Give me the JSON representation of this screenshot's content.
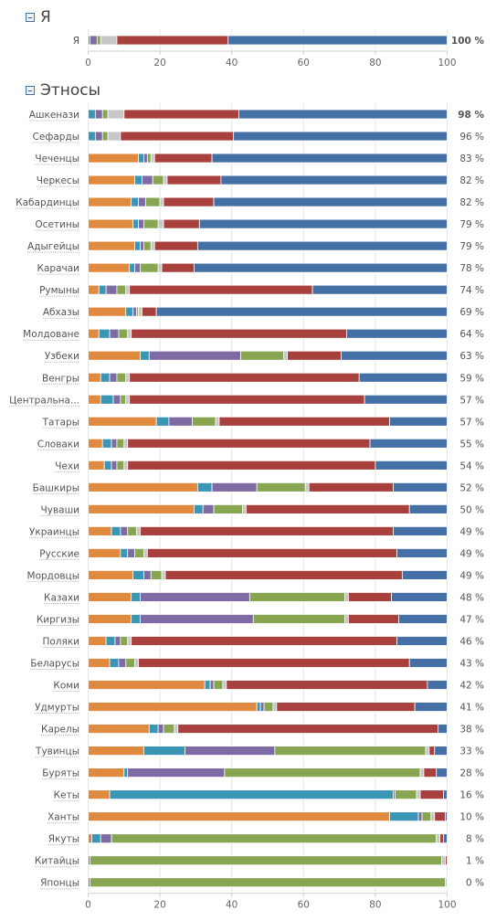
{
  "sections": [
    {
      "title": "Я",
      "chart_data": {
        "type": "bar",
        "orientation": "horizontal",
        "stacked": true,
        "xlim": [
          0,
          100
        ],
        "xticks": [
          0,
          20,
          40,
          60,
          80,
          100
        ],
        "categories": [
          "Я"
        ],
        "percent_labels": [
          "100 %"
        ],
        "segments": [
          [
            0,
            0.5,
            2,
            1,
            4.5,
            31,
            61
          ]
        ]
      }
    },
    {
      "title": "Этносы",
      "chart_data": {
        "type": "bar",
        "orientation": "horizontal",
        "stacked": true,
        "xlim": [
          0,
          100
        ],
        "xticks": [
          0,
          20,
          40,
          60,
          80,
          100
        ],
        "categories": [
          "Ашкенази",
          "Сефарды",
          "Чеченцы",
          "Черкесы",
          "Кабардинцы",
          "Осетины",
          "Адыгейцы",
          "Карачаи",
          "Румыны",
          "Абхазы",
          "Молдоване",
          "Узбеки",
          "Венгры",
          "Центральна...",
          "Татары",
          "Словаки",
          "Чехи",
          "Башкиры",
          "Чуваши",
          "Украинцы",
          "Русские",
          "Мордовцы",
          "Казахи",
          "Киргизы",
          "Поляки",
          "Беларусы",
          "Коми",
          "Удмурты",
          "Карелы",
          "Тувинцы",
          "Буряты",
          "Кеты",
          "Ханты",
          "Якуты",
          "Китайцы",
          "Японцы"
        ],
        "percent_labels": [
          "98 %",
          "96 %",
          "83 %",
          "82 %",
          "82 %",
          "79 %",
          "79 %",
          "78 %",
          "74 %",
          "69 %",
          "64 %",
          "63 %",
          "59 %",
          "57 %",
          "57 %",
          "55 %",
          "54 %",
          "52 %",
          "50 %",
          "49 %",
          "49 %",
          "49 %",
          "48 %",
          "47 %",
          "46 %",
          "43 %",
          "42 %",
          "41 %",
          "38 %",
          "33 %",
          "28 %",
          "16 %",
          "10 %",
          "8 %",
          "1 %",
          "0 %"
        ],
        "segments": [
          [
            0,
            2,
            2,
            1.5,
            4.5,
            32,
            58
          ],
          [
            0,
            2,
            2,
            1.5,
            3.5,
            31.5,
            59.5
          ],
          [
            14,
            1.5,
            1,
            1,
            1,
            16,
            65.5
          ],
          [
            13,
            2,
            3,
            3,
            1,
            15,
            63
          ],
          [
            12,
            2,
            2,
            4,
            1,
            14,
            65
          ],
          [
            12.5,
            1.5,
            1.5,
            4,
            1.5,
            10,
            69
          ],
          [
            13,
            1.5,
            1,
            2,
            1,
            12,
            69.5
          ],
          [
            11.5,
            1.5,
            1.5,
            5,
            1,
            9,
            70.5
          ],
          [
            3,
            2,
            3,
            2.5,
            1,
            51,
            37.5
          ],
          [
            10.5,
            2,
            1,
            0.5,
            1,
            4,
            81
          ],
          [
            3,
            3,
            2.5,
            2.5,
            1,
            60,
            28
          ],
          [
            14.5,
            2.5,
            25.5,
            12,
            1,
            15,
            29.5
          ],
          [
            3.5,
            2.5,
            2,
            2.5,
            1,
            64,
            24.5
          ],
          [
            3.5,
            3.5,
            2,
            1.5,
            1,
            65.5,
            23
          ],
          [
            19,
            3.5,
            6.5,
            6.5,
            1,
            47.5,
            16
          ],
          [
            4,
            2.5,
            1.5,
            2,
            1,
            67.5,
            21.5
          ],
          [
            4.5,
            2,
            1.5,
            2,
            1,
            69,
            20
          ],
          [
            30.5,
            4,
            12.5,
            13.5,
            1,
            23.5,
            15
          ],
          [
            29.5,
            2.5,
            3,
            8,
            1,
            45.5,
            10.5
          ],
          [
            6.5,
            2.5,
            2,
            2.5,
            1,
            70.5,
            15
          ],
          [
            9,
            2,
            2,
            2.5,
            1,
            69.5,
            14
          ],
          [
            12.5,
            3,
            2,
            3,
            1,
            66,
            12.5
          ],
          [
            12,
            2.5,
            30.5,
            26.5,
            1,
            12,
            15.5
          ],
          [
            12,
            2.5,
            31.5,
            25.5,
            1,
            14,
            13.5
          ],
          [
            5,
            2.5,
            1.5,
            2,
            1,
            74,
            14
          ],
          [
            6,
            2.5,
            2,
            2.5,
            1,
            75.5,
            10.5
          ],
          [
            32.5,
            1.5,
            1,
            2.5,
            1,
            56,
            5.5
          ],
          [
            47,
            1,
            1,
            2.5,
            1,
            38.5,
            9
          ],
          [
            17,
            2.5,
            1.5,
            3,
            1,
            72.5,
            2.5
          ],
          [
            15.5,
            11.5,
            25,
            42,
            1,
            1.5,
            3.5
          ],
          [
            10,
            1,
            27,
            54.5,
            1,
            3.5,
            3
          ],
          [
            6,
            79,
            0.5,
            6,
            1,
            6.5,
            1
          ],
          [
            84,
            8,
            1,
            2.5,
            1,
            3,
            0.5
          ],
          [
            1,
            2.5,
            3,
            90.5,
            1,
            1,
            1
          ],
          [
            0,
            0,
            0.5,
            98,
            1,
            0.5,
            0
          ],
          [
            0,
            0,
            0.5,
            99,
            0.5,
            0,
            0
          ]
        ]
      }
    }
  ],
  "segment_colors": [
    "#e08a40",
    "#3b95b4",
    "#7e6ba3",
    "#88a651",
    "#c7c7c7",
    "#a8413e",
    "#4570a6"
  ]
}
